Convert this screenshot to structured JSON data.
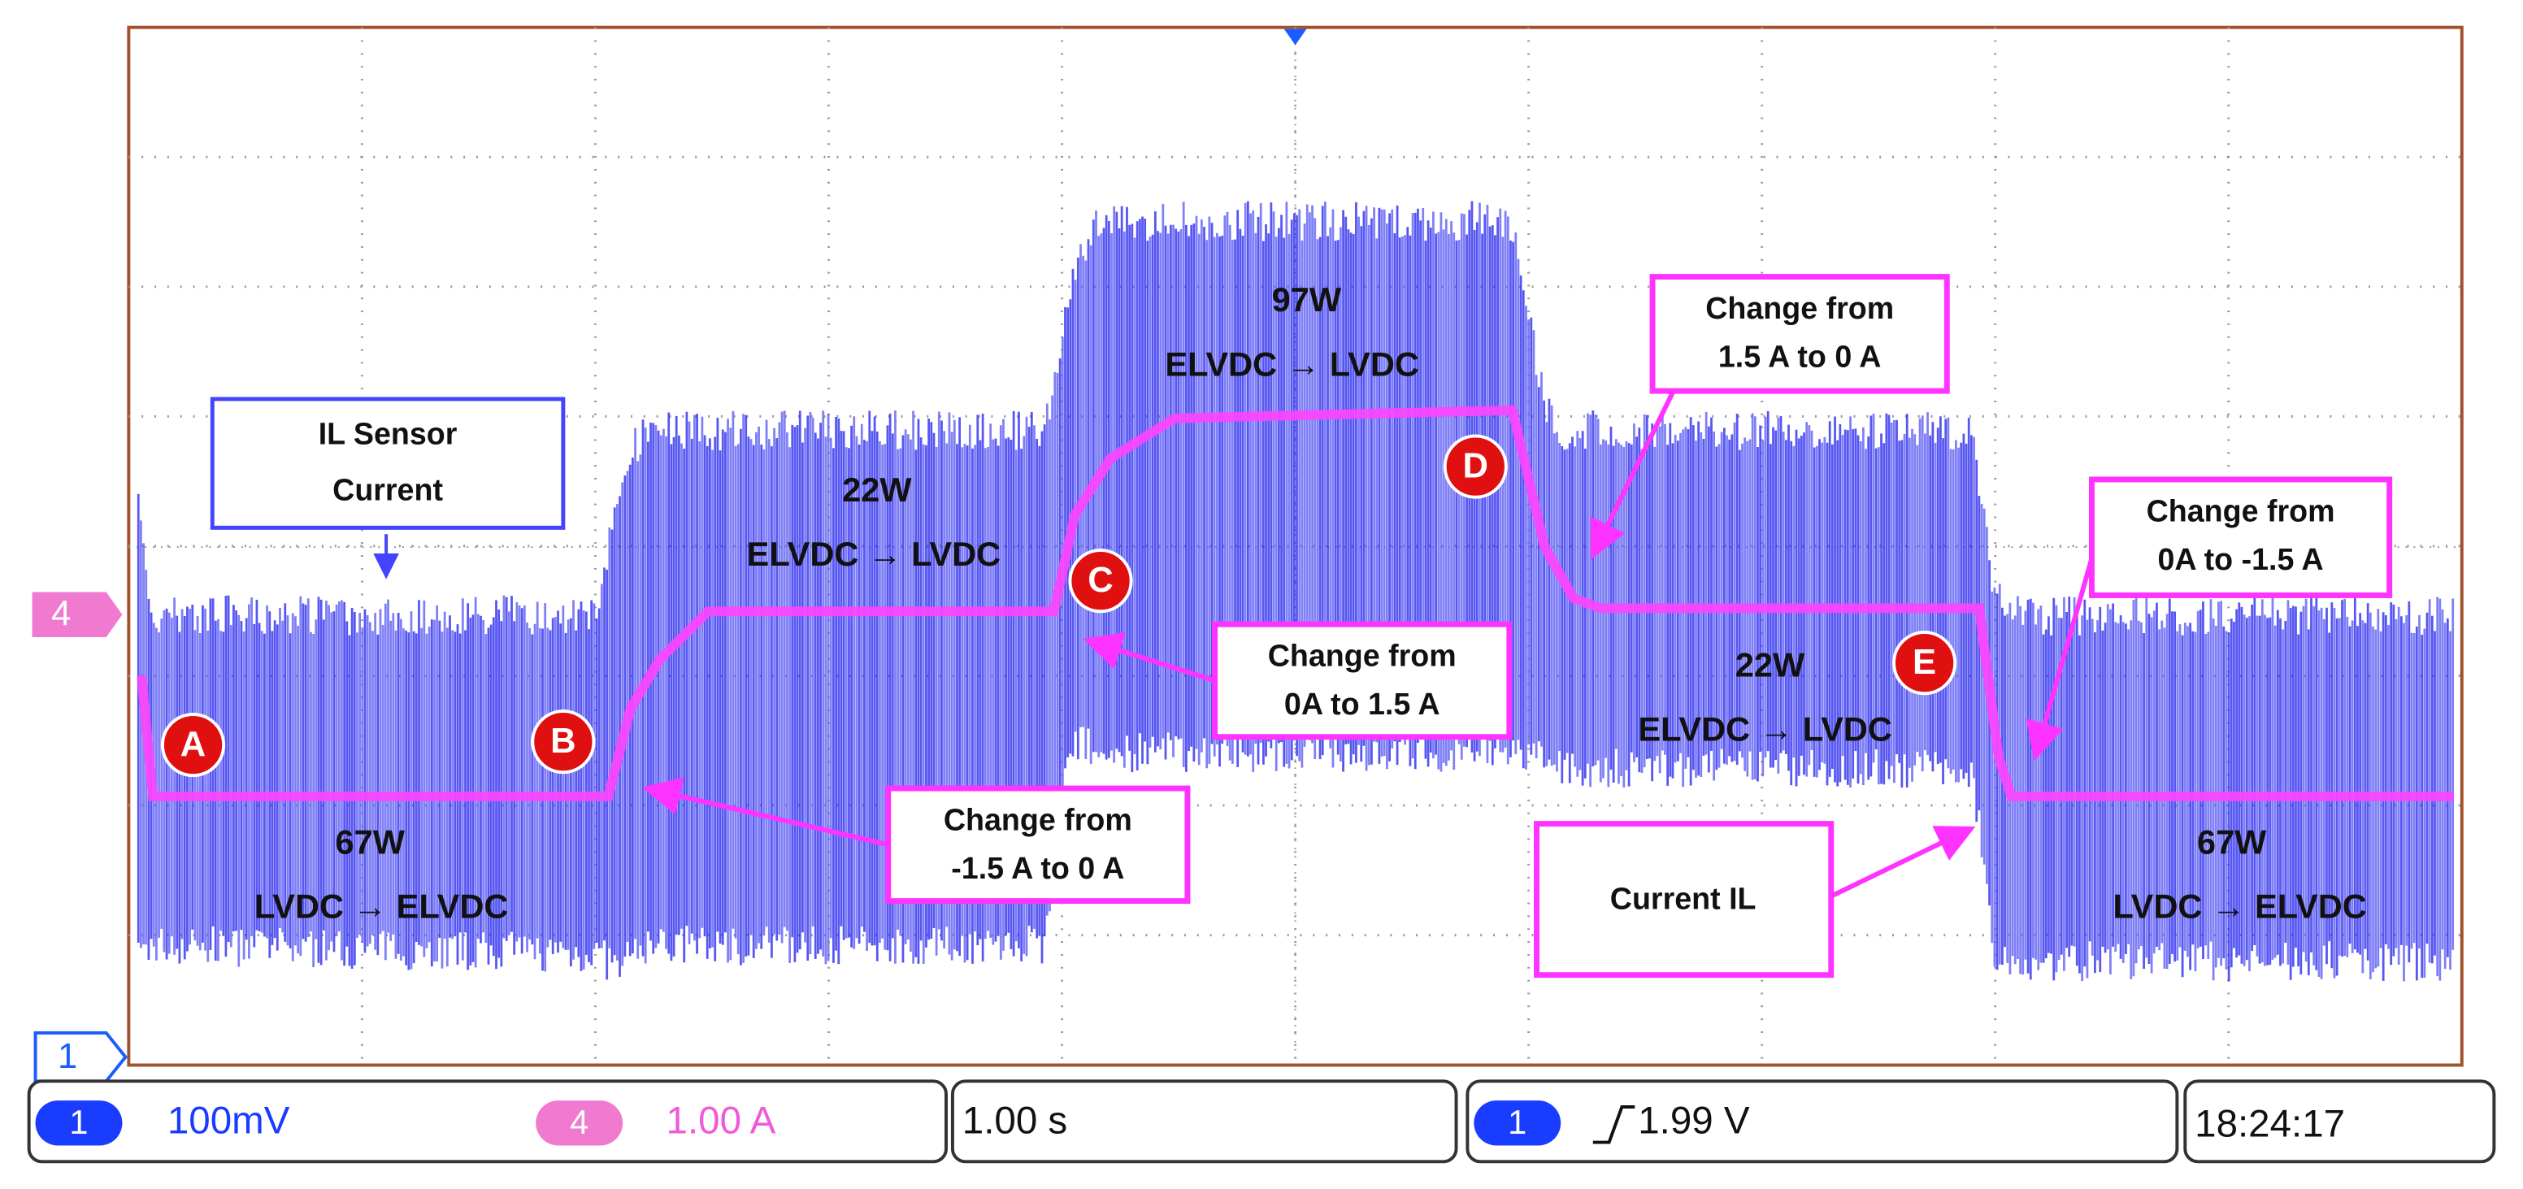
{
  "markers": {
    "channel_4": "4",
    "channel_1": "1"
  },
  "annotations": {
    "sensor_box": [
      "IL Sensor",
      "Current"
    ],
    "points": [
      "A",
      "B",
      "C",
      "D",
      "E"
    ],
    "power_labels": [
      {
        "power": "67W",
        "direction": "LVDC  →  ELVDC"
      },
      {
        "power": "22W",
        "direction": "ELVDC  →  LVDC"
      },
      {
        "power": "97W",
        "direction": "ELVDC  →  LVDC"
      },
      {
        "power": "22W",
        "direction": "ELVDC  →  LVDC"
      },
      {
        "power": "67W",
        "direction": "LVDC  →  ELVDC"
      }
    ],
    "change_boxes": [
      [
        "Change from",
        "-1.5 A to 0 A"
      ],
      [
        "Change from",
        "0A to 1.5 A"
      ],
      [
        "Change from",
        "1.5 A to 0 A"
      ],
      [
        "Change from",
        "0A to -1.5 A"
      ]
    ],
    "current_box": "Current IL"
  },
  "status_bar": {
    "ch1_badge": "1",
    "ch1_scale": "100mV",
    "ch4_badge": "4",
    "ch4_scale": "1.00 A",
    "timebase": "1.00 s",
    "trigger_badge": "1",
    "trigger_level": "1.99 V",
    "time": "18:24:17"
  }
}
